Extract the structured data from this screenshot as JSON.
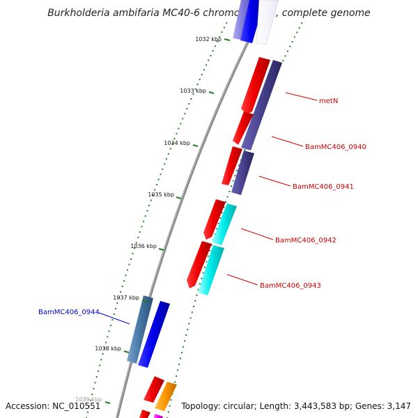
{
  "title": "Burkholderia ambifaria MC40-6 chromosome 1, complete genome",
  "footer": {
    "accession": "Accession: NC_010551",
    "summary": "Topology: circular; Length: 3,443,583 bp; Genes: 3,147"
  },
  "colors": {
    "backbone": "#8a8a8a",
    "tick": "#1e7d1e",
    "label_red": "#cc0000",
    "label_blue": "#0000cc"
  },
  "kbp_ticks": [
    {
      "label": "1032 kbp",
      "kbp": 1032
    },
    {
      "label": "1033 kbp",
      "kbp": 1033
    },
    {
      "label": "1034 kbp",
      "kbp": 1034
    },
    {
      "label": "1035 kbp",
      "kbp": 1035
    },
    {
      "label": "1036 kbp",
      "kbp": 1036
    },
    {
      "label": "1037 kbp",
      "kbp": 1037
    },
    {
      "label": "1038 kbp",
      "kbp": 1038
    },
    {
      "label": "1039 kbp",
      "kbp": 1039
    }
  ],
  "gene_labels": [
    {
      "name": "metN",
      "color": "#cc0000"
    },
    {
      "name": "BamMC406_0940",
      "color": "#cc0000"
    },
    {
      "name": "BamMC406_0941",
      "color": "#cc0000"
    },
    {
      "name": "BamMC406_0942",
      "color": "#cc0000"
    },
    {
      "name": "BamMC406_0943",
      "color": "#cc0000"
    },
    {
      "name": "BamMC406_0944",
      "color": "#0000cc"
    }
  ]
}
